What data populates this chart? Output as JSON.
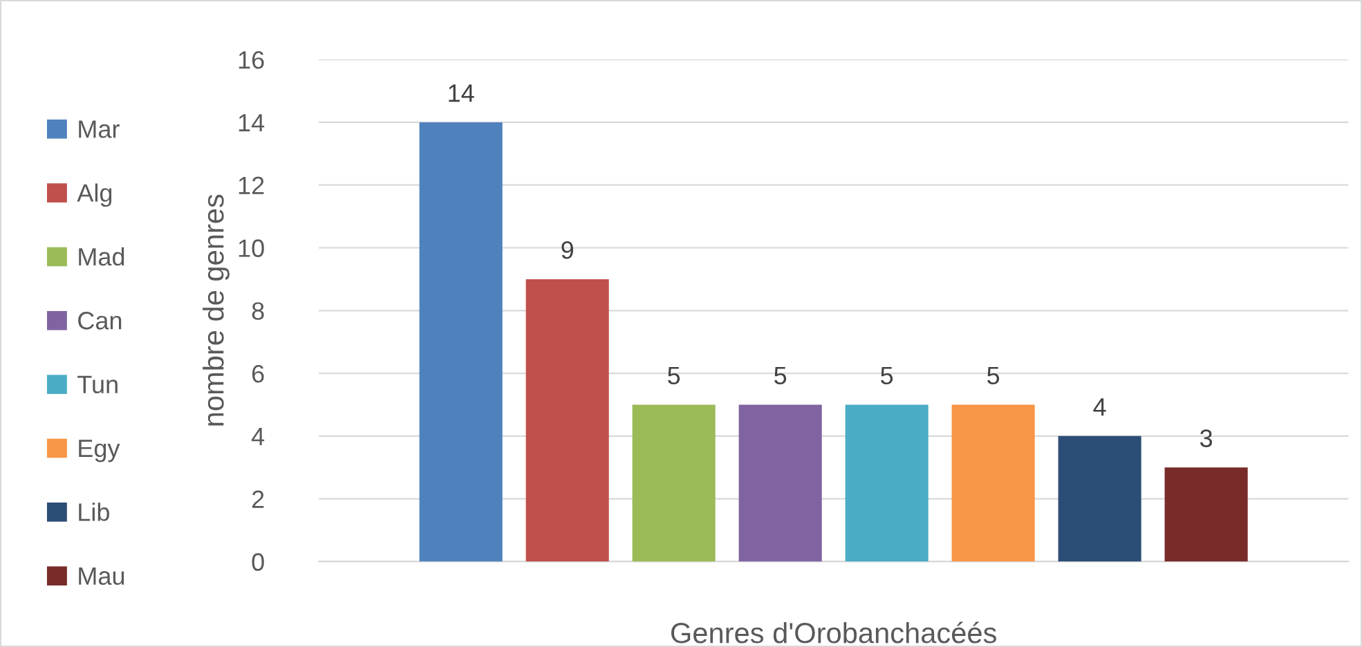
{
  "chart_data": {
    "type": "bar",
    "xlabel": "Genres d'Orobanchacéés",
    "ylabel": "nombre de genres",
    "categories": [
      null
    ],
    "series": [
      {
        "name": "Mar",
        "color": "#4f81bd",
        "values": [
          14
        ]
      },
      {
        "name": "Alg",
        "color": "#c0504d",
        "values": [
          9
        ]
      },
      {
        "name": "Mad",
        "color": "#9bbb59",
        "values": [
          5
        ]
      },
      {
        "name": "Can",
        "color": "#8064a2",
        "values": [
          5
        ]
      },
      {
        "name": "Tun",
        "color": "#4bacc6",
        "values": [
          5
        ]
      },
      {
        "name": "Egy",
        "color": "#f79646",
        "values": [
          5
        ]
      },
      {
        "name": "Lib",
        "color": "#2c4d75",
        "values": [
          4
        ]
      },
      {
        "name": "Mau",
        "color": "#772c2a",
        "values": [
          3
        ]
      }
    ],
    "ylim": [
      0,
      16
    ],
    "yticks": [
      0,
      2,
      4,
      6,
      8,
      10,
      12,
      14,
      16
    ],
    "grid": "y",
    "legend": "left",
    "data_labels": true
  }
}
